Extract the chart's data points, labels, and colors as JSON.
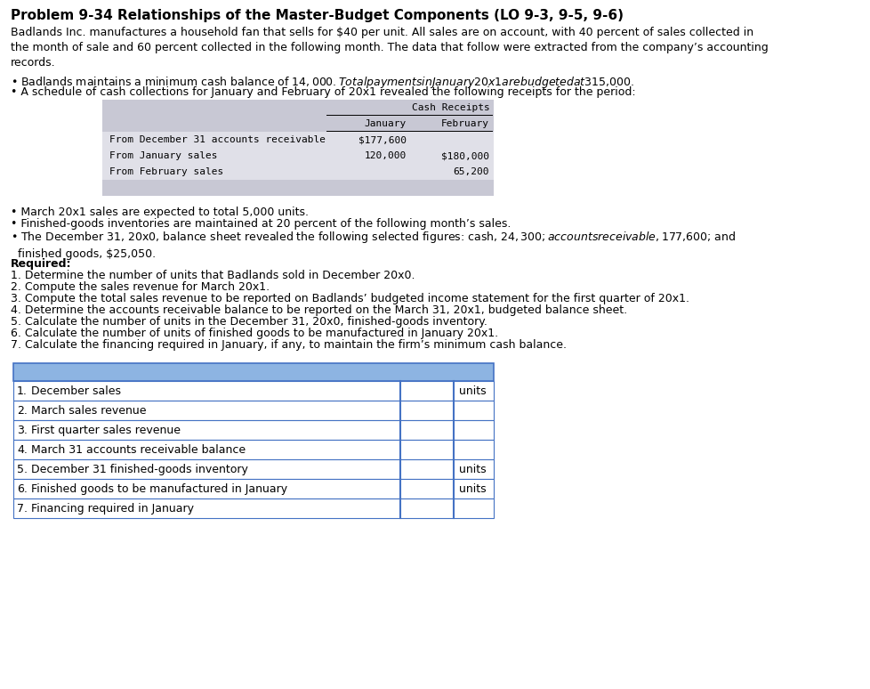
{
  "title": "Problem 9-34 Relationships of the Master-Budget Components (LO 9-3, 9-5, 9-6)",
  "intro_text": "Badlands Inc. manufactures a household fan that sells for $40 per unit. All sales are on account, with 40 percent of sales collected in\nthe month of sale and 60 percent collected in the following month. The data that follow were extracted from the company’s accounting\nrecords.",
  "bullet1": "• Badlands maintains a minimum cash balance of $14,000. Total payments in January 20x1 are budgeted at $315,000.",
  "bullet2": "• A schedule of cash collections for January and February of 20x1 revealed the following receipts for the period:",
  "cash_receipts_label": "Cash Receipts",
  "jan_label": "January",
  "feb_label": "February",
  "table1_rows": [
    [
      "From December 31 accounts receivable",
      "$177,600",
      ""
    ],
    [
      "From January sales",
      "120,000",
      "$180,000"
    ],
    [
      "From February sales",
      "",
      "65,200"
    ]
  ],
  "bullet3": "• March 20x1 sales are expected to total 5,000 units.",
  "bullet4": "• Finished-goods inventories are maintained at 20 percent of the following month’s sales.",
  "bullet5": "• The December 31, 20x0, balance sheet revealed the following selected figures: cash, $24,300; accounts receivable, $177,600; and\n  finished goods, $25,050.",
  "required_label": "Required:",
  "required_items": [
    "1. Determine the number of units that Badlands sold in December 20x0.",
    "2. Compute the sales revenue for March 20x1.",
    "3. Compute the total sales revenue to be reported on Badlands’ budgeted income statement for the first quarter of 20x1.",
    "4. Determine the accounts receivable balance to be reported on the March 31, 20x1, budgeted balance sheet.",
    "5. Calculate the number of units in the December 31, 20x0, finished-goods inventory.",
    "6. Calculate the number of units of finished goods to be manufactured in January 20x1.",
    "7. Calculate the financing required in January, if any, to maintain the firm’s minimum cash balance."
  ],
  "answer_table_header_color": "#8DB4E2",
  "answer_table_border_color": "#4472C4",
  "answer_rows": [
    {
      "num": "1.",
      "label": "December sales",
      "units": "units"
    },
    {
      "num": "2.",
      "label": "March sales revenue",
      "units": ""
    },
    {
      "num": "3.",
      "label": "First quarter sales revenue",
      "units": ""
    },
    {
      "num": "4.",
      "label": "March 31 accounts receivable balance",
      "units": ""
    },
    {
      "num": "5.",
      "label": "December 31 finished-goods inventory",
      "units": "units"
    },
    {
      "num": "6.",
      "label": "Finished goods to be manufactured in January",
      "units": "units"
    },
    {
      "num": "7.",
      "label": "Financing required in January",
      "units": ""
    }
  ],
  "bg_color": "#FFFFFF",
  "table1_bg_header": "#C8C8D4",
  "table1_bg_rows": "#E0E0E8",
  "table1_bg_bottom": "#C8C8D4"
}
